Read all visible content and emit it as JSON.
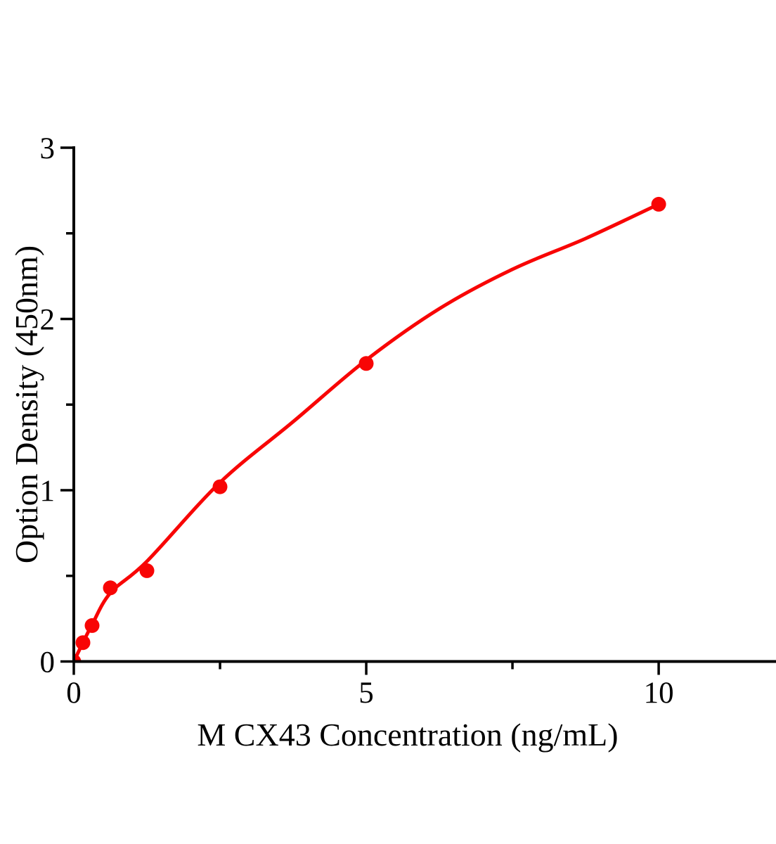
{
  "chart_data": {
    "type": "scatter",
    "title": "",
    "xlabel": "M CX43 Concentration (ng/mL)",
    "ylabel": "Option Density (450nm)",
    "xlim": [
      0,
      12
    ],
    "ylim": [
      0,
      3
    ],
    "x_major_ticks": [
      0,
      5,
      10
    ],
    "x_minor_ticks": [
      2.5,
      7.5
    ],
    "y_major_ticks": [
      0,
      1,
      2,
      3
    ],
    "y_minor_ticks": [
      0.5,
      1.5,
      2.5
    ],
    "grid": false,
    "legend": "none",
    "background_color": "#ffffff",
    "axis_color": "#000000",
    "marker_color": "#f80505",
    "line_color": "#f80505",
    "points": [
      {
        "x": 0,
        "y": 0.0
      },
      {
        "x": 0.156,
        "y": 0.11
      },
      {
        "x": 0.313,
        "y": 0.21
      },
      {
        "x": 0.625,
        "y": 0.43
      },
      {
        "x": 1.25,
        "y": 0.53
      },
      {
        "x": 2.5,
        "y": 1.02
      },
      {
        "x": 5,
        "y": 1.74
      },
      {
        "x": 10,
        "y": 2.67
      }
    ],
    "fit_curve": [
      [
        0,
        0.0
      ],
      [
        0.156,
        0.11
      ],
      [
        0.313,
        0.215
      ],
      [
        0.625,
        0.4
      ],
      [
        1.25,
        0.585
      ],
      [
        2.5,
        1.045
      ],
      [
        3.75,
        1.4
      ],
      [
        5,
        1.76
      ],
      [
        6.25,
        2.06
      ],
      [
        7.5,
        2.29
      ],
      [
        8.75,
        2.47
      ],
      [
        10,
        2.67
      ]
    ]
  }
}
